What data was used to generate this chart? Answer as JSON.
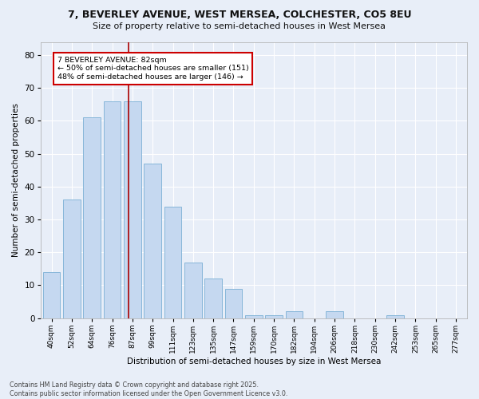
{
  "title1": "7, BEVERLEY AVENUE, WEST MERSEA, COLCHESTER, CO5 8EU",
  "title2": "Size of property relative to semi-detached houses in West Mersea",
  "xlabel": "Distribution of semi-detached houses by size in West Mersea",
  "ylabel": "Number of semi-detached properties",
  "footnote": "Contains HM Land Registry data © Crown copyright and database right 2025.\nContains public sector information licensed under the Open Government Licence v3.0.",
  "bar_labels": [
    "40sqm",
    "52sqm",
    "64sqm",
    "76sqm",
    "87sqm",
    "99sqm",
    "111sqm",
    "123sqm",
    "135sqm",
    "147sqm",
    "159sqm",
    "170sqm",
    "182sqm",
    "194sqm",
    "206sqm",
    "218sqm",
    "230sqm",
    "242sqm",
    "253sqm",
    "265sqm",
    "277sqm"
  ],
  "bar_values": [
    14,
    36,
    61,
    66,
    66,
    47,
    34,
    17,
    12,
    9,
    1,
    1,
    2,
    0,
    2,
    0,
    0,
    1,
    0,
    0,
    0
  ],
  "bar_color": "#c5d8f0",
  "bar_edge_color": "#7aafd4",
  "bg_color": "#e8eef8",
  "grid_color": "#ffffff",
  "annotation_text": "7 BEVERLEY AVENUE: 82sqm\n← 50% of semi-detached houses are smaller (151)\n48% of semi-detached houses are larger (146) →",
  "annotation_box_color": "#ffffff",
  "annotation_box_edge": "#cc0000",
  "vline_x": 3.82,
  "vline_color": "#aa0000",
  "ylim": [
    0,
    84
  ],
  "yticks": [
    0,
    10,
    20,
    30,
    40,
    50,
    60,
    70,
    80
  ]
}
